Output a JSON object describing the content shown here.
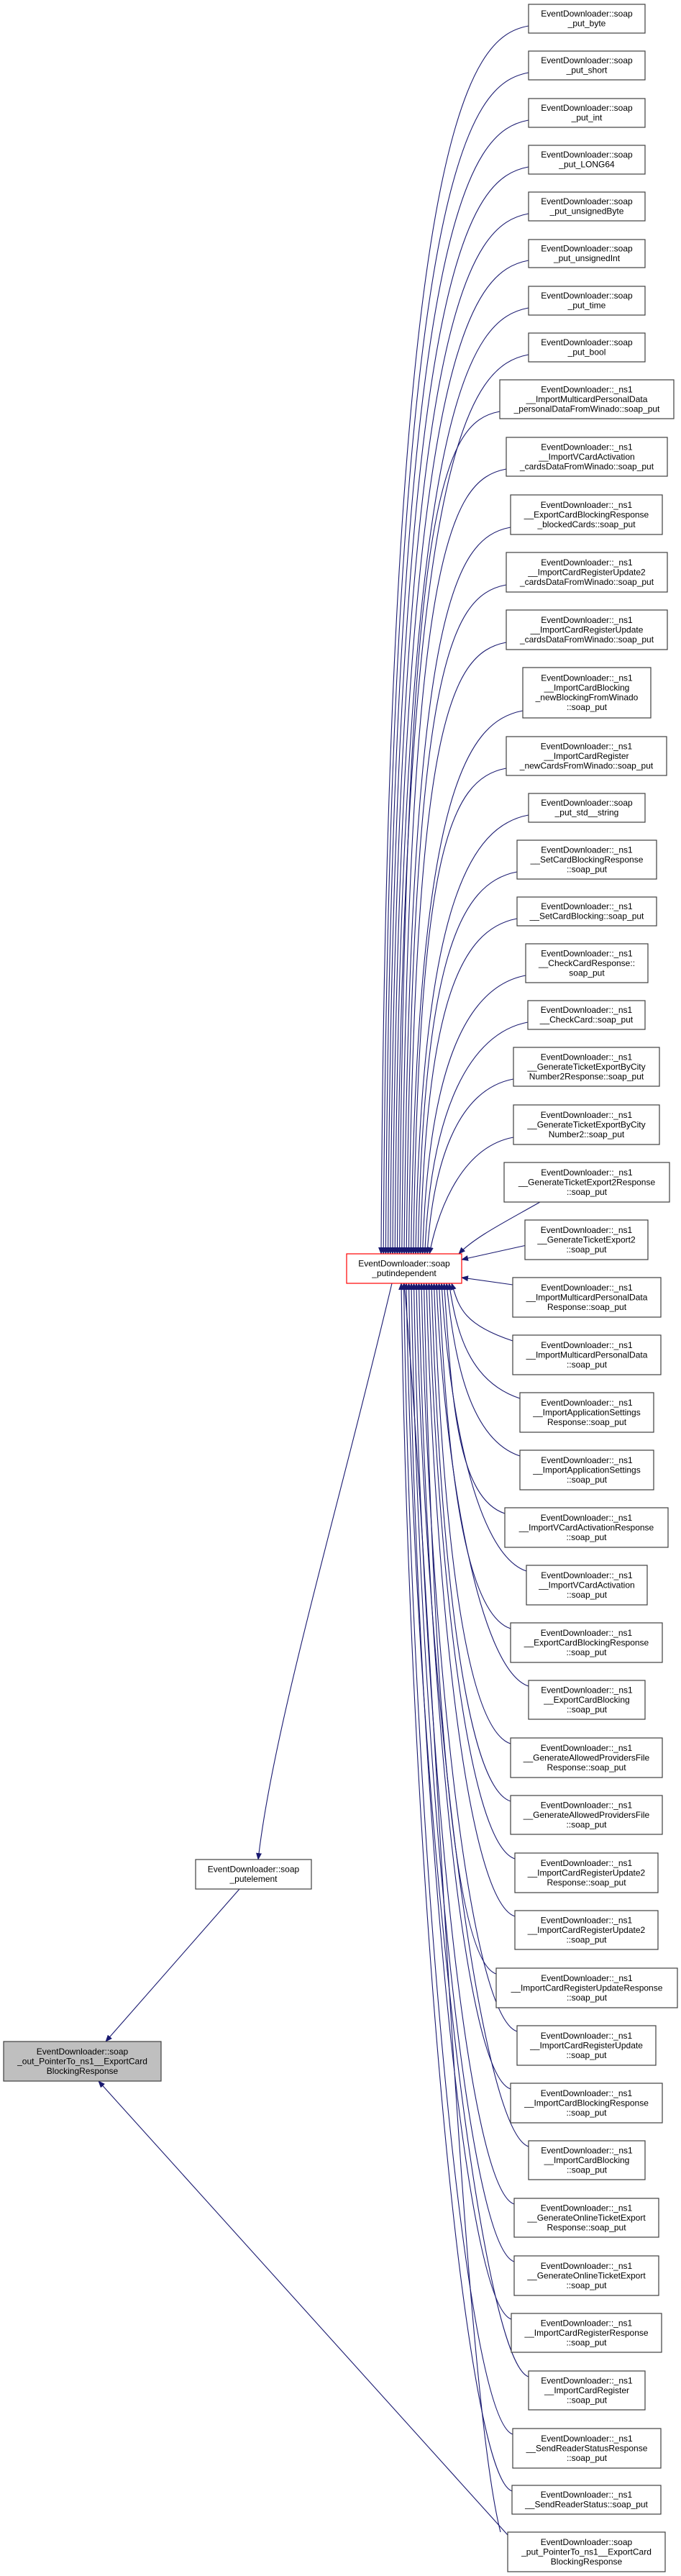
{
  "graph": {
    "type": "caller-graph",
    "colors": {
      "edge": "#191970",
      "focus_fill": "#bfbfbf",
      "highlight_border": "#ff0000",
      "node_border": "#404040"
    },
    "focus": {
      "lines": [
        "EventDownloader::soap",
        "_out_PointerTo_ns1__ExportCard",
        "BlockingResponse"
      ]
    },
    "putelement": {
      "lines": [
        "EventDownloader::soap",
        "_putelement"
      ]
    },
    "putindependent": {
      "lines": [
        "EventDownloader::soap",
        "_putindependent"
      ]
    },
    "pointer_put": {
      "lines": [
        "EventDownloader::soap",
        "_put_PointerTo_ns1__ExportCard",
        "BlockingResponse"
      ]
    },
    "nodes": [
      {
        "lines": [
          "EventDownloader::soap",
          "_put_byte"
        ]
      },
      {
        "lines": [
          "EventDownloader::soap",
          "_put_short"
        ]
      },
      {
        "lines": [
          "EventDownloader::soap",
          "_put_int"
        ]
      },
      {
        "lines": [
          "EventDownloader::soap",
          "_put_LONG64"
        ]
      },
      {
        "lines": [
          "EventDownloader::soap",
          "_put_unsignedByte"
        ]
      },
      {
        "lines": [
          "EventDownloader::soap",
          "_put_unsignedInt"
        ]
      },
      {
        "lines": [
          "EventDownloader::soap",
          "_put_time"
        ]
      },
      {
        "lines": [
          "EventDownloader::soap",
          "_put_bool"
        ]
      },
      {
        "lines": [
          "EventDownloader::_ns1",
          "__ImportMulticardPersonalData",
          "_personalDataFromWinado::soap_put"
        ]
      },
      {
        "lines": [
          "EventDownloader::_ns1",
          "__ImportVCardActivation",
          "_cardsDataFromWinado::soap_put"
        ]
      },
      {
        "lines": [
          "EventDownloader::_ns1",
          "__ExportCardBlockingResponse",
          "_blockedCards::soap_put"
        ]
      },
      {
        "lines": [
          "EventDownloader::_ns1",
          "__ImportCardRegisterUpdate2",
          "_cardsDataFromWinado::soap_put"
        ]
      },
      {
        "lines": [
          "EventDownloader::_ns1",
          "__ImportCardRegisterUpdate",
          "_cardsDataFromWinado::soap_put"
        ]
      },
      {
        "lines": [
          "EventDownloader::_ns1",
          "__ImportCardBlocking",
          "_newBlockingFromWinado",
          "::soap_put"
        ]
      },
      {
        "lines": [
          "EventDownloader::_ns1",
          "__ImportCardRegister",
          "_newCardsFromWinado::soap_put"
        ]
      },
      {
        "lines": [
          "EventDownloader::soap",
          "_put_std__string"
        ]
      },
      {
        "lines": [
          "EventDownloader::_ns1",
          "__SetCardBlockingResponse",
          "::soap_put"
        ]
      },
      {
        "lines": [
          "EventDownloader::_ns1",
          "__SetCardBlocking::soap_put"
        ]
      },
      {
        "lines": [
          "EventDownloader::_ns1",
          "__CheckCardResponse::",
          "soap_put"
        ]
      },
      {
        "lines": [
          "EventDownloader::_ns1",
          "__CheckCard::soap_put"
        ]
      },
      {
        "lines": [
          "EventDownloader::_ns1",
          "__GenerateTicketExportByCity",
          "Number2Response::soap_put"
        ]
      },
      {
        "lines": [
          "EventDownloader::_ns1",
          "__GenerateTicketExportByCity",
          "Number2::soap_put"
        ]
      },
      {
        "lines": [
          "EventDownloader::_ns1",
          "__GenerateTicketExport2Response",
          "::soap_put"
        ]
      },
      {
        "lines": [
          "EventDownloader::_ns1",
          "__GenerateTicketExport2",
          "::soap_put"
        ]
      },
      {
        "lines": [
          "EventDownloader::_ns1",
          "__ImportMulticardPersonalData",
          "Response::soap_put"
        ]
      },
      {
        "lines": [
          "EventDownloader::_ns1",
          "__ImportMulticardPersonalData",
          "::soap_put"
        ]
      },
      {
        "lines": [
          "EventDownloader::_ns1",
          "__ImportApplicationSettings",
          "Response::soap_put"
        ]
      },
      {
        "lines": [
          "EventDownloader::_ns1",
          "__ImportApplicationSettings",
          "::soap_put"
        ]
      },
      {
        "lines": [
          "EventDownloader::_ns1",
          "__ImportVCardActivationResponse",
          "::soap_put"
        ]
      },
      {
        "lines": [
          "EventDownloader::_ns1",
          "__ImportVCardActivation",
          "::soap_put"
        ]
      },
      {
        "lines": [
          "EventDownloader::_ns1",
          "__ExportCardBlockingResponse",
          "::soap_put"
        ]
      },
      {
        "lines": [
          "EventDownloader::_ns1",
          "__ExportCardBlocking",
          "::soap_put"
        ]
      },
      {
        "lines": [
          "EventDownloader::_ns1",
          "__GenerateAllowedProvidersFile",
          "Response::soap_put"
        ]
      },
      {
        "lines": [
          "EventDownloader::_ns1",
          "__GenerateAllowedProvidersFile",
          "::soap_put"
        ]
      },
      {
        "lines": [
          "EventDownloader::_ns1",
          "__ImportCardRegisterUpdate2",
          "Response::soap_put"
        ]
      },
      {
        "lines": [
          "EventDownloader::_ns1",
          "__ImportCardRegisterUpdate2",
          "::soap_put"
        ]
      },
      {
        "lines": [
          "EventDownloader::_ns1",
          "__ImportCardRegisterUpdateResponse",
          "::soap_put"
        ]
      },
      {
        "lines": [
          "EventDownloader::_ns1",
          "__ImportCardRegisterUpdate",
          "::soap_put"
        ]
      },
      {
        "lines": [
          "EventDownloader::_ns1",
          "__ImportCardBlockingResponse",
          "::soap_put"
        ]
      },
      {
        "lines": [
          "EventDownloader::_ns1",
          "__ImportCardBlocking",
          "::soap_put"
        ]
      },
      {
        "lines": [
          "EventDownloader::_ns1",
          "__GenerateOnlineTicketExport",
          "Response::soap_put"
        ]
      },
      {
        "lines": [
          "EventDownloader::_ns1",
          "__GenerateOnlineTicketExport",
          "::soap_put"
        ]
      },
      {
        "lines": [
          "EventDownloader::_ns1",
          "__ImportCardRegisterResponse",
          "::soap_put"
        ]
      },
      {
        "lines": [
          "EventDownloader::_ns1",
          "__ImportCardRegister",
          "::soap_put"
        ]
      },
      {
        "lines": [
          "EventDownloader::_ns1",
          "__SendReaderStatusResponse",
          "::soap_put"
        ]
      },
      {
        "lines": [
          "EventDownloader::_ns1",
          "__SendReaderStatus::soap_put"
        ]
      }
    ]
  }
}
